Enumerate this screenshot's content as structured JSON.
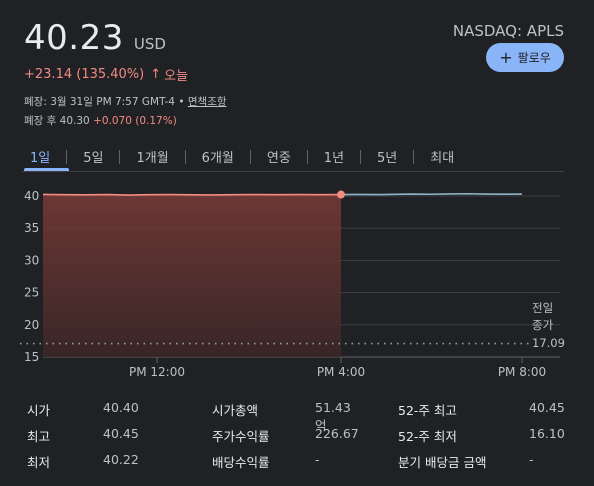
{
  "quote": {
    "price": "40.23",
    "currency": "USD",
    "change": "+23.14 (135.40%)",
    "change_arrow": "↑",
    "change_period": "오늘",
    "ticker": "NASDAQ: APLS",
    "follow_label": "팔로우",
    "closed_info": "폐장: 3월 31일 PM 7:57 GMT-4 •",
    "disclaimer_link": "면책조항",
    "after_hours_label": "폐장 후 40.30",
    "after_hours_change": "+0.070 (0.17%)"
  },
  "tabs": [
    "1일",
    "5일",
    "1개월",
    "6개월",
    "연중",
    "1년",
    "5년",
    "최대"
  ],
  "chart_data": {
    "type": "line",
    "x_ticks": [
      "PM 12:00",
      "PM 4:00",
      "PM 8:00"
    ],
    "y_ticks": [
      "40",
      "35",
      "30",
      "25",
      "20",
      "15"
    ],
    "ylim": [
      15,
      40
    ],
    "prev_close_label": [
      "전일",
      "종가",
      "17.09"
    ],
    "prev_close_value": 17.09,
    "series": [
      {
        "segment": "regular",
        "color": "#f28b82",
        "values": [
          40.25,
          40.2,
          40.18,
          40.22,
          40.15,
          40.2,
          40.22,
          40.18,
          40.16,
          40.2,
          40.23,
          40.21,
          40.22,
          40.2,
          40.23
        ]
      },
      {
        "segment": "after-hours",
        "color": "#9aa0a6",
        "values": [
          40.23,
          40.25,
          40.22,
          40.26,
          40.3,
          40.27,
          40.32,
          40.35,
          40.3,
          40.28,
          40.3
        ]
      }
    ]
  },
  "stats": {
    "col1": [
      {
        "label": "시가",
        "value": "40.40"
      },
      {
        "label": "최고",
        "value": "40.45"
      },
      {
        "label": "최저",
        "value": "40.22"
      }
    ],
    "col2": [
      {
        "label": "시가총액",
        "value": "51.43억"
      },
      {
        "label": "주가수익률",
        "value": "226.67"
      },
      {
        "label": "배당수익률",
        "value": "-"
      }
    ],
    "col3": [
      {
        "label": "52-주 최고",
        "value": "40.45"
      },
      {
        "label": "52-주 최저",
        "value": "16.10"
      },
      {
        "label": "분기 배당금 금액",
        "value": "-"
      }
    ]
  }
}
